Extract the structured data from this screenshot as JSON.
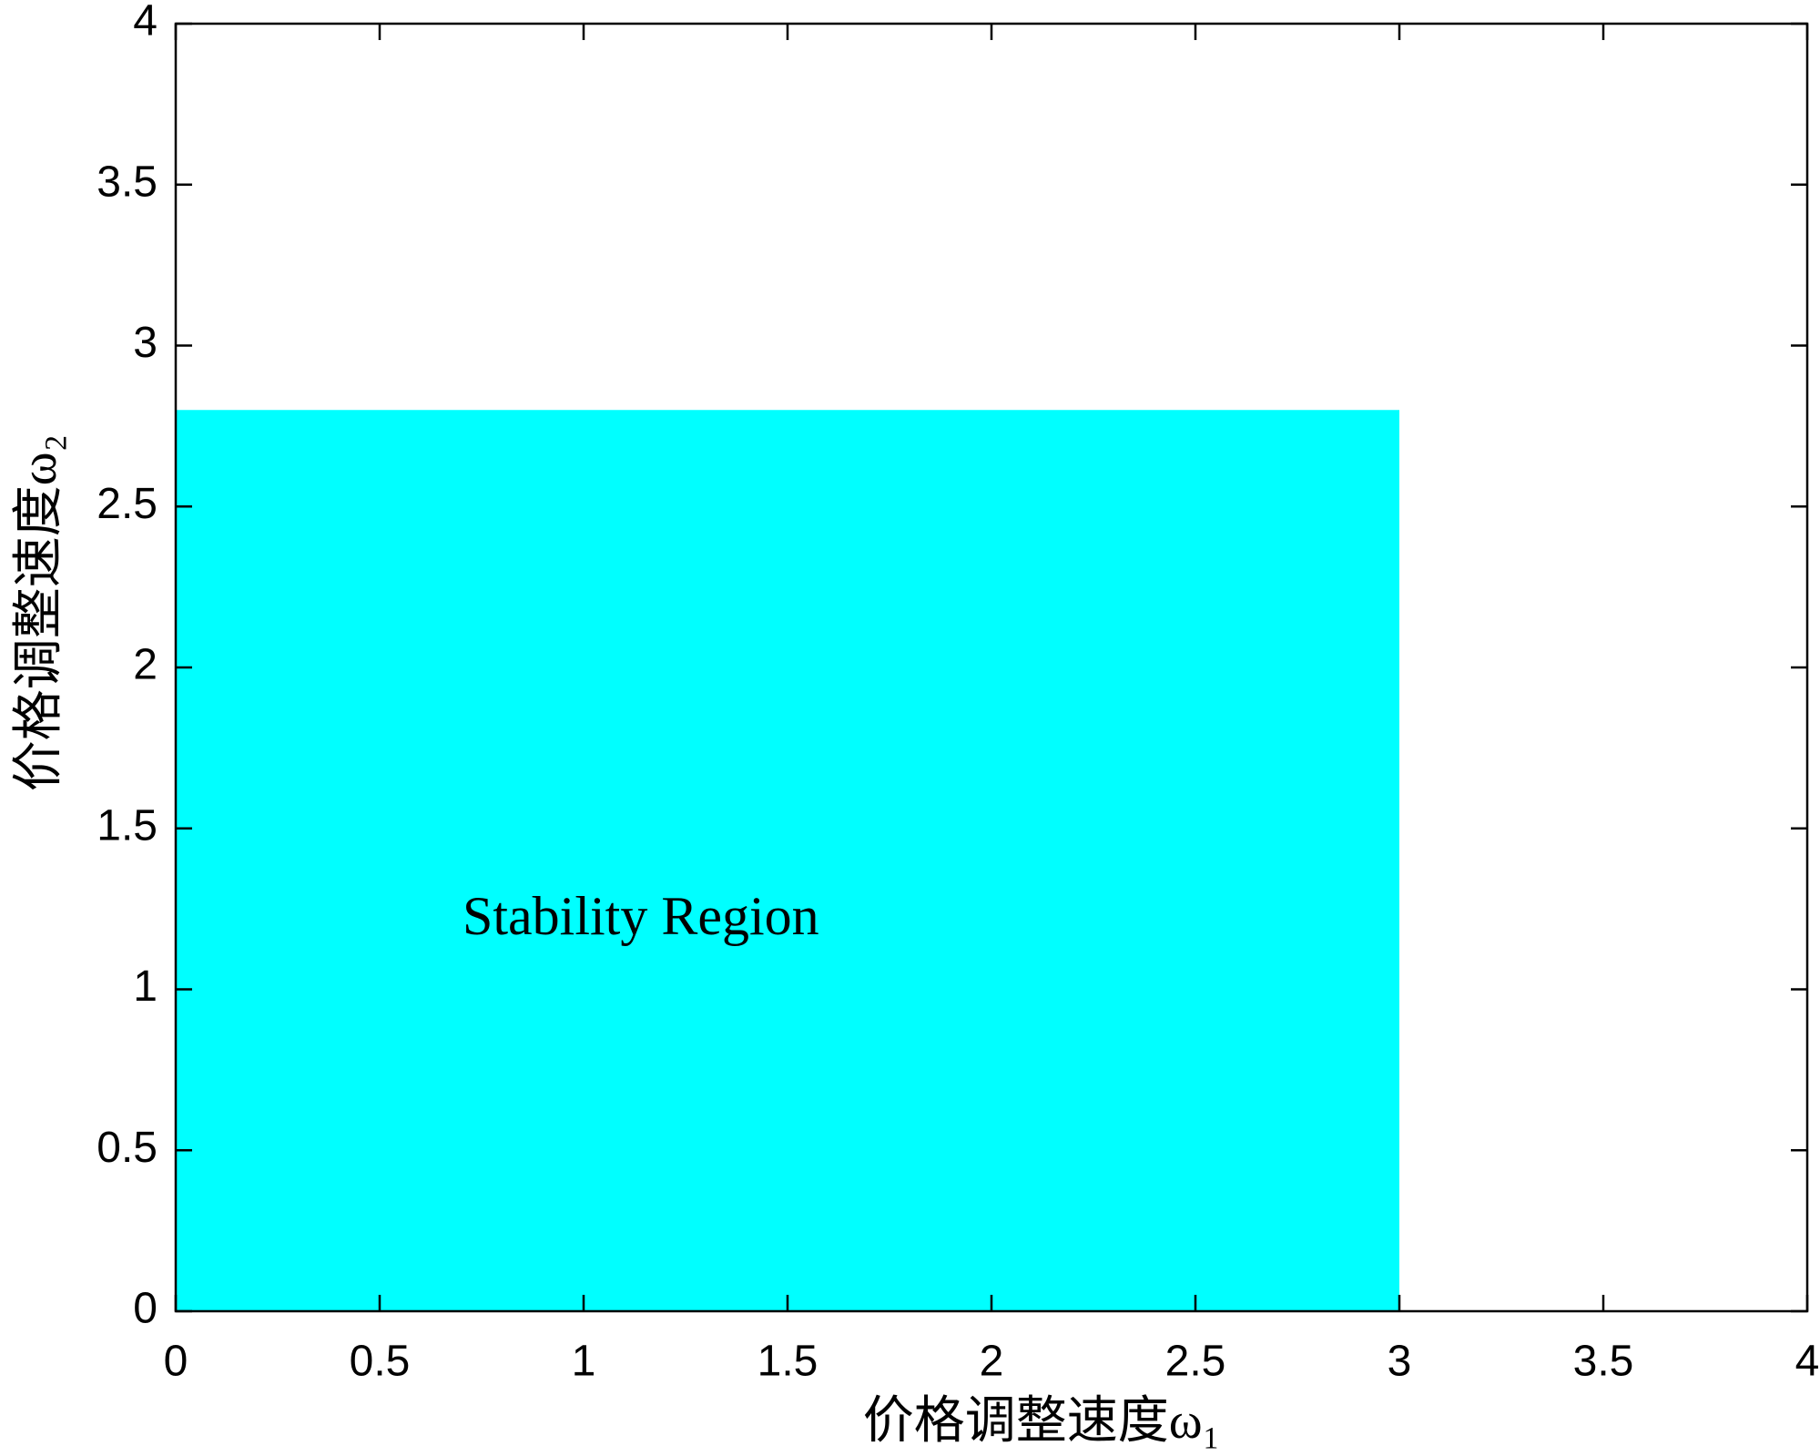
{
  "chart_data": {
    "type": "area",
    "xlabel": "价格调整速度ω₁",
    "ylabel": "价格调整速度ω₂",
    "annotation": "Stability Region",
    "x": [
      0,
      3
    ],
    "values": [
      2.8,
      2.8
    ],
    "color": "#00ffff",
    "xlim": [
      0,
      4
    ],
    "ylim": [
      0,
      4
    ],
    "xticks": [
      0,
      0.5,
      1,
      1.5,
      2,
      2.5,
      3,
      3.5,
      4
    ],
    "yticks": [
      0,
      0.5,
      1,
      1.5,
      2,
      2.5,
      3,
      3.5,
      4
    ],
    "grid": false
  }
}
